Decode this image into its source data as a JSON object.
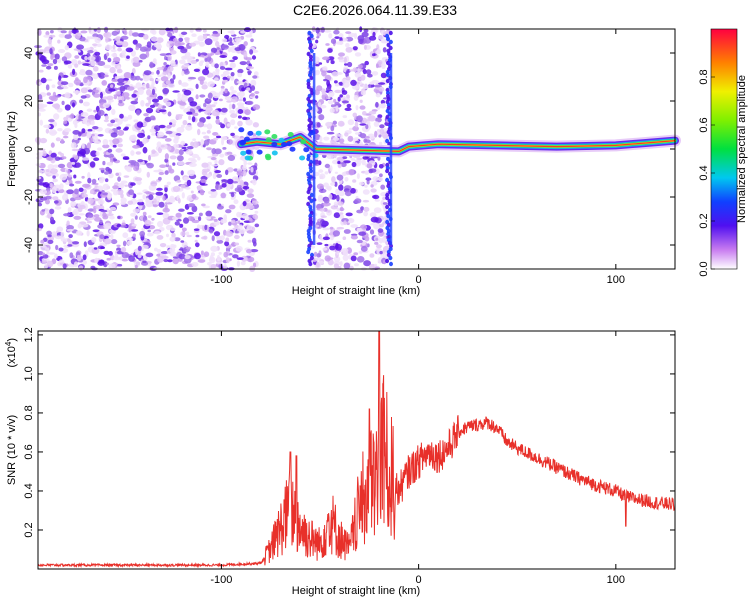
{
  "title": "C2E6.2026.064.11.39.E33",
  "chart_data": [
    {
      "type": "heatmap",
      "xlabel": "Height of straight line (km)",
      "ylabel": "Frequency (Hz)",
      "xlim": [
        -193,
        130
      ],
      "ylim": [
        -50,
        50
      ],
      "x_ticks": [
        -100,
        0,
        100
      ],
      "y_ticks": [
        -40,
        -20,
        0,
        20,
        40
      ],
      "noise_regions": [
        [
          -193,
          -82
        ],
        [
          -55,
          -15
        ]
      ],
      "signal_track": [
        [
          -90,
          2
        ],
        [
          -82,
          3
        ],
        [
          -70,
          2
        ],
        [
          -60,
          5
        ],
        [
          -52,
          0
        ],
        [
          -10,
          -1
        ],
        [
          -5,
          1
        ],
        [
          10,
          2
        ],
        [
          40,
          1.5
        ],
        [
          70,
          1
        ],
        [
          100,
          1.5
        ],
        [
          130,
          3.5
        ]
      ],
      "colorbar": {
        "label": "Normalized spectral amplitude",
        "range": [
          0,
          1
        ],
        "ticks": [
          "0.0",
          "0.2",
          "0.4",
          "0.6",
          "0.8"
        ]
      }
    },
    {
      "type": "line",
      "xlabel": "Height of straight line (km)",
      "ylabel": "SNR (10 * v/v)",
      "y_multiplier": "(x10",
      "y_multiplier_exp": "4",
      "y_multiplier_close": ")",
      "xlim": [
        -193,
        130
      ],
      "ylim": [
        0,
        1.22
      ],
      "x_ticks": [
        -100,
        0,
        100
      ],
      "y_ticks": [
        "0.2",
        "0.4",
        "0.6",
        "0.8",
        "1.0",
        "1.2"
      ],
      "color": "#e8302a",
      "series": [
        {
          "x": [
            -193,
            -150,
            -100,
            -80,
            -75,
            -70,
            -65,
            -60,
            -55,
            -50,
            -45,
            -40,
            -35,
            -30,
            -25,
            -20,
            -18,
            -15,
            -10,
            -5,
            0,
            5,
            10,
            15,
            20,
            25,
            30,
            35,
            40,
            45,
            50,
            60,
            70,
            80,
            90,
            100,
            105,
            110,
            120,
            130
          ],
          "y": [
            0.02,
            0.02,
            0.02,
            0.03,
            0.1,
            0.2,
            0.3,
            0.2,
            0.15,
            0.12,
            0.25,
            0.15,
            0.1,
            0.3,
            0.4,
            0.45,
            0.6,
            0.45,
            0.4,
            0.5,
            0.55,
            0.6,
            0.58,
            0.62,
            0.7,
            0.73,
            0.74,
            0.75,
            0.72,
            0.65,
            0.62,
            0.57,
            0.52,
            0.47,
            0.43,
            0.4,
            0.37,
            0.36,
            0.34,
            0.33
          ]
        }
      ],
      "spikes": [
        [
          -20,
          1.22
        ],
        [
          -18,
          0.95
        ],
        [
          -25,
          0.82
        ],
        [
          -65,
          0.6
        ],
        [
          -62,
          0.58
        ],
        [
          105,
          0.22
        ]
      ]
    }
  ]
}
